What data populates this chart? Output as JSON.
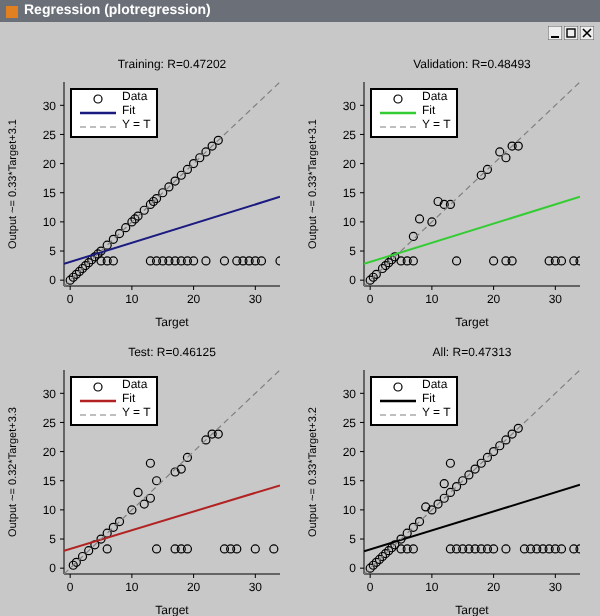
{
  "chart_data": [
    {
      "type": "scatter",
      "title": "Training: R=0.47202",
      "xlabel": "Target",
      "ylabel": "Output ~= 0.33*Target+3.1",
      "annotations": [
        "Regression (plotregression)"
      ],
      "xlim": [
        -1,
        34
      ],
      "ylim": [
        -1,
        34
      ],
      "xticks": [
        0,
        10,
        20,
        30
      ],
      "yticks": [
        0,
        5,
        10,
        15,
        20,
        25,
        30
      ],
      "legend": "top left",
      "series": [
        {
          "name": "Data",
          "marker": "circle",
          "color": "#000000",
          "x": [
            0,
            0.5,
            1,
            1.5,
            2,
            2.5,
            3,
            3.5,
            4,
            4.5,
            5,
            6,
            7,
            8,
            9,
            10,
            10.5,
            11,
            12,
            13,
            13.5,
            14,
            15,
            16,
            17,
            18,
            19,
            20,
            21,
            22,
            23,
            24,
            5,
            6,
            7,
            13,
            14,
            15,
            16,
            17,
            18,
            19,
            20,
            22,
            25,
            27,
            28,
            29,
            30,
            31,
            34
          ],
          "values": [
            0,
            0.5,
            1,
            1.5,
            2,
            2.5,
            3,
            3.5,
            4,
            4.5,
            5,
            6,
            7,
            8,
            9,
            10,
            10.5,
            11,
            12,
            13,
            13.5,
            14,
            15,
            16,
            17,
            18,
            19,
            20,
            21,
            22,
            23,
            24,
            3.3,
            3.3,
            3.3,
            3.3,
            3.3,
            3.3,
            3.3,
            3.3,
            3.3,
            3.3,
            3.3,
            3.3,
            3.3,
            3.3,
            3.3,
            3.3,
            3.3,
            3.3,
            3.3
          ]
        },
        {
          "name": "Fit",
          "type": "line",
          "marker": "none",
          "color": "#1a1a80",
          "x": [
            -1,
            34
          ],
          "values": [
            2.8,
            14.3
          ]
        },
        {
          "name": "Y = T",
          "type": "line",
          "marker": "none",
          "line_style": "dashed",
          "color": "#808080",
          "x": [
            -1,
            34
          ],
          "values": [
            -1,
            34
          ]
        }
      ]
    },
    {
      "type": "scatter",
      "title": "Validation: R=0.48493",
      "xlabel": "Target",
      "ylabel": "Output ~= 0.33*Target+3.1",
      "xlim": [
        -1,
        34
      ],
      "ylim": [
        -1,
        34
      ],
      "xticks": [
        0,
        10,
        20,
        30
      ],
      "yticks": [
        0,
        5,
        10,
        15,
        20,
        25,
        30
      ],
      "legend": "top left",
      "series": [
        {
          "name": "Data",
          "marker": "circle",
          "color": "#000000",
          "x": [
            0,
            0.5,
            1,
            2,
            2.5,
            3,
            3.5,
            4,
            7,
            8,
            10,
            11,
            12,
            13,
            18,
            19,
            21,
            22,
            23,
            24,
            5,
            6,
            7,
            14,
            20,
            22,
            23,
            29,
            30,
            31,
            33,
            34
          ],
          "values": [
            0,
            0.5,
            1,
            2,
            2.5,
            3,
            3.5,
            4,
            7.5,
            10.5,
            10,
            13.5,
            13,
            13,
            18,
            19,
            22,
            21,
            23,
            23,
            3.3,
            3.3,
            3.3,
            3.3,
            3.3,
            3.3,
            3.3,
            3.3,
            3.3,
            3.3,
            3.3,
            3.3
          ]
        },
        {
          "name": "Fit",
          "type": "line",
          "marker": "none",
          "color": "#33cc33",
          "x": [
            -1,
            34
          ],
          "values": [
            2.8,
            14.3
          ]
        },
        {
          "name": "Y = T",
          "type": "line",
          "marker": "none",
          "line_style": "dashed",
          "color": "#808080",
          "x": [
            -1,
            34
          ],
          "values": [
            -1,
            34
          ]
        }
      ]
    },
    {
      "type": "scatter",
      "title": "Test: R=0.46125",
      "xlabel": "Target",
      "ylabel": "Output ~= 0.32*Target+3.3",
      "xlim": [
        -1,
        34
      ],
      "ylim": [
        -1,
        34
      ],
      "xticks": [
        0,
        10,
        20,
        30
      ],
      "yticks": [
        0,
        5,
        10,
        15,
        20,
        25,
        30
      ],
      "legend": "top left",
      "series": [
        {
          "name": "Data",
          "marker": "circle",
          "color": "#000000",
          "x": [
            0.5,
            1,
            2,
            3,
            4,
            5,
            6,
            7,
            8,
            10,
            11,
            12,
            13,
            13,
            14,
            17,
            18,
            19,
            22,
            23,
            24,
            6,
            14,
            17,
            18,
            19,
            25,
            26,
            27,
            30,
            33
          ],
          "values": [
            0.5,
            1,
            2,
            3,
            4,
            5,
            6,
            7,
            8,
            10,
            13,
            11,
            12,
            18,
            15,
            16.5,
            17,
            19,
            22,
            23,
            23,
            3.3,
            3.3,
            3.3,
            3.3,
            3.3,
            3.3,
            3.3,
            3.3,
            3.3,
            3.3
          ]
        },
        {
          "name": "Fit",
          "type": "line",
          "marker": "none",
          "color": "#b22222",
          "x": [
            -1,
            34
          ],
          "values": [
            3,
            14.2
          ]
        },
        {
          "name": "Y = T",
          "type": "line",
          "marker": "none",
          "line_style": "dashed",
          "color": "#808080",
          "x": [
            -1,
            34
          ],
          "values": [
            -1,
            34
          ]
        }
      ]
    },
    {
      "type": "scatter",
      "title": "All: R=0.47313",
      "xlabel": "Target",
      "ylabel": "Output ~= 0.33*Target+3.2",
      "xlim": [
        -1,
        34
      ],
      "ylim": [
        -1,
        34
      ],
      "xticks": [
        0,
        10,
        20,
        30
      ],
      "yticks": [
        0,
        5,
        10,
        15,
        20,
        25,
        30
      ],
      "legend": "top left",
      "series": [
        {
          "name": "Data",
          "marker": "circle",
          "color": "#000000",
          "x": [
            0,
            0.5,
            1,
            1.5,
            2,
            2.5,
            3,
            3.5,
            4,
            5,
            6,
            7,
            8,
            9,
            10,
            11,
            12,
            12,
            13,
            13,
            14,
            15,
            16,
            17,
            18,
            19,
            20,
            21,
            22,
            23,
            24,
            5,
            6,
            7,
            13,
            14,
            15,
            16,
            17,
            18,
            19,
            20,
            22,
            25,
            26,
            27,
            28,
            29,
            30,
            31,
            33,
            34
          ],
          "values": [
            0,
            0.5,
            1,
            1.5,
            2,
            2.5,
            3,
            3.5,
            4,
            5,
            6,
            7,
            8,
            10.5,
            10,
            11,
            12,
            14.5,
            13,
            18,
            14,
            15,
            16,
            17,
            18,
            19,
            20,
            21,
            22,
            23,
            24,
            3.3,
            3.3,
            3.3,
            3.3,
            3.3,
            3.3,
            3.3,
            3.3,
            3.3,
            3.3,
            3.3,
            3.3,
            3.3,
            3.3,
            3.3,
            3.3,
            3.3,
            3.3,
            3.3,
            3.3,
            3.3
          ]
        },
        {
          "name": "Fit",
          "type": "line",
          "marker": "none",
          "color": "#000000",
          "x": [
            -1,
            34
          ],
          "values": [
            2.9,
            14.3
          ]
        },
        {
          "name": "Y = T",
          "type": "line",
          "marker": "none",
          "line_style": "dashed",
          "color": "#808080",
          "x": [
            -1,
            34
          ],
          "values": [
            -1,
            34
          ]
        }
      ]
    }
  ]
}
